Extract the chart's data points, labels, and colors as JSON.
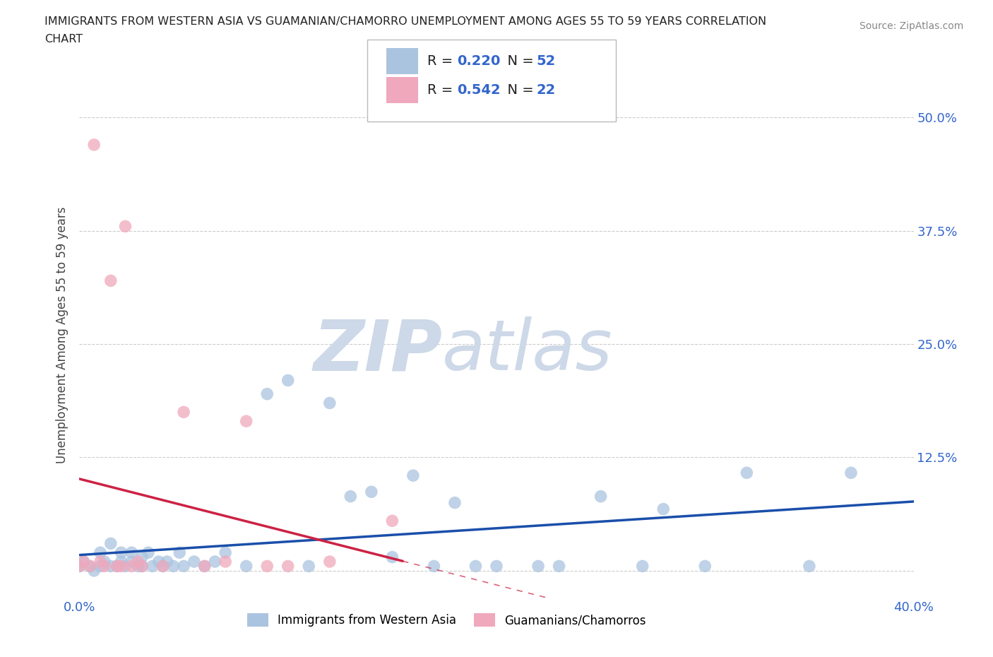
{
  "title_line1": "IMMIGRANTS FROM WESTERN ASIA VS GUAMANIAN/CHAMORRO UNEMPLOYMENT AMONG AGES 55 TO 59 YEARS CORRELATION",
  "title_line2": "CHART",
  "source": "Source: ZipAtlas.com",
  "ylabel": "Unemployment Among Ages 55 to 59 years",
  "xlim": [
    0.0,
    0.4
  ],
  "ylim": [
    -0.03,
    0.55
  ],
  "xticks": [
    0.0,
    0.1,
    0.2,
    0.3,
    0.4
  ],
  "xticklabels": [
    "0.0%",
    "",
    "",
    "",
    "40.0%"
  ],
  "yticks": [
    0.0,
    0.125,
    0.25,
    0.375,
    0.5
  ],
  "yticklabels": [
    "",
    "12.5%",
    "25.0%",
    "37.5%",
    "50.0%"
  ],
  "blue_R": 0.22,
  "blue_N": 52,
  "pink_R": 0.542,
  "pink_N": 22,
  "blue_color": "#aac4e0",
  "pink_color": "#f0a8bc",
  "blue_line_color": "#1a4faa",
  "pink_line_color": "#cc2244",
  "grid_color": "#cccccc",
  "watermark_color": "#cdd8e8",
  "blue_scatter_x": [
    0.0,
    0.002,
    0.005,
    0.007,
    0.01,
    0.01,
    0.012,
    0.015,
    0.015,
    0.018,
    0.02,
    0.02,
    0.022,
    0.025,
    0.025,
    0.028,
    0.03,
    0.03,
    0.033,
    0.035,
    0.038,
    0.04,
    0.042,
    0.045,
    0.048,
    0.05,
    0.055,
    0.06,
    0.065,
    0.07,
    0.08,
    0.09,
    0.1,
    0.11,
    0.12,
    0.13,
    0.14,
    0.15,
    0.16,
    0.17,
    0.18,
    0.19,
    0.2,
    0.22,
    0.23,
    0.25,
    0.27,
    0.28,
    0.3,
    0.32,
    0.35,
    0.37
  ],
  "blue_scatter_y": [
    0.005,
    0.01,
    0.005,
    0.0,
    0.005,
    0.02,
    0.01,
    0.005,
    0.03,
    0.005,
    0.01,
    0.02,
    0.005,
    0.01,
    0.02,
    0.005,
    0.005,
    0.015,
    0.02,
    0.005,
    0.01,
    0.005,
    0.01,
    0.005,
    0.02,
    0.005,
    0.01,
    0.005,
    0.01,
    0.02,
    0.005,
    0.195,
    0.21,
    0.005,
    0.185,
    0.082,
    0.087,
    0.015,
    0.105,
    0.005,
    0.075,
    0.005,
    0.005,
    0.005,
    0.005,
    0.082,
    0.005,
    0.068,
    0.005,
    0.108,
    0.005,
    0.108
  ],
  "pink_scatter_x": [
    0.0,
    0.002,
    0.005,
    0.007,
    0.01,
    0.012,
    0.015,
    0.018,
    0.02,
    0.022,
    0.025,
    0.028,
    0.03,
    0.04,
    0.05,
    0.06,
    0.07,
    0.08,
    0.09,
    0.1,
    0.12,
    0.15
  ],
  "pink_scatter_y": [
    0.005,
    0.01,
    0.005,
    0.47,
    0.01,
    0.005,
    0.32,
    0.005,
    0.005,
    0.38,
    0.005,
    0.01,
    0.005,
    0.005,
    0.175,
    0.005,
    0.01,
    0.165,
    0.005,
    0.005,
    0.01,
    0.055
  ],
  "legend_label_blue": "Immigrants from Western Asia",
  "legend_label_pink": "Guamanians/Chamorros"
}
